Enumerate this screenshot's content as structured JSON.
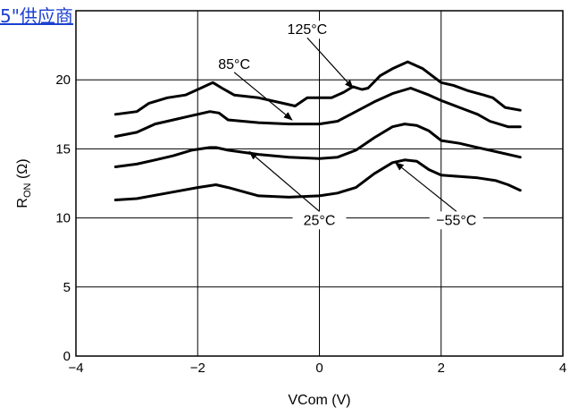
{
  "overlay_link": "5\"供应商",
  "chart_data": {
    "type": "line",
    "title": "",
    "xlabel": "VCom (V)",
    "ylabel_main": "R",
    "ylabel_sub": "ON",
    "ylabel_unit": " (Ω)",
    "xlim": [
      -4,
      4
    ],
    "ylim": [
      0,
      25
    ],
    "xticks": [
      -4,
      -2,
      0,
      2,
      4
    ],
    "yticks": [
      0,
      5,
      10,
      15,
      20,
      25
    ],
    "x_tick_labels": [
      "−4",
      "−2",
      "0",
      "2",
      "4"
    ],
    "grid": true,
    "series": [
      {
        "name": "125°C",
        "x": [
          -3.35,
          -3.0,
          -2.8,
          -2.5,
          -2.2,
          -1.95,
          -1.75,
          -1.6,
          -1.4,
          -1.0,
          -0.6,
          -0.4,
          -0.2,
          0.0,
          0.2,
          0.4,
          0.55,
          0.7,
          0.8,
          1.0,
          1.2,
          1.45,
          1.7,
          2.0,
          2.2,
          2.45,
          2.7,
          2.85,
          3.05,
          3.3
        ],
        "y": [
          17.5,
          17.7,
          18.3,
          18.7,
          18.9,
          19.4,
          19.8,
          19.4,
          18.9,
          18.7,
          18.3,
          18.1,
          18.7,
          18.7,
          18.7,
          19.1,
          19.5,
          19.3,
          19.4,
          20.3,
          20.8,
          21.3,
          20.8,
          19.8,
          19.6,
          19.2,
          18.9,
          18.7,
          18.0,
          17.8
        ]
      },
      {
        "name": "85°C",
        "x": [
          -3.35,
          -3.0,
          -2.7,
          -2.4,
          -2.1,
          -1.8,
          -1.65,
          -1.5,
          -1.0,
          -0.5,
          0.0,
          0.3,
          0.6,
          0.9,
          1.2,
          1.5,
          1.8,
          2.0,
          2.3,
          2.6,
          2.8,
          3.1,
          3.3
        ],
        "y": [
          15.9,
          16.2,
          16.8,
          17.1,
          17.4,
          17.7,
          17.6,
          17.1,
          16.9,
          16.8,
          16.8,
          17.0,
          17.7,
          18.4,
          19.0,
          19.4,
          18.9,
          18.5,
          18.0,
          17.5,
          17.0,
          16.6,
          16.6
        ]
      },
      {
        "name": "25°C",
        "x": [
          -3.35,
          -3.0,
          -2.7,
          -2.4,
          -2.1,
          -1.8,
          -1.7,
          -1.5,
          -1.0,
          -0.5,
          0.0,
          0.3,
          0.6,
          0.9,
          1.2,
          1.4,
          1.6,
          1.8,
          2.0,
          2.3,
          2.6,
          2.9,
          3.3
        ],
        "y": [
          13.7,
          13.9,
          14.2,
          14.5,
          14.9,
          15.1,
          15.1,
          14.9,
          14.6,
          14.4,
          14.3,
          14.4,
          14.9,
          15.8,
          16.6,
          16.8,
          16.7,
          16.3,
          15.6,
          15.4,
          15.1,
          14.8,
          14.4
        ]
      },
      {
        "name": "−55°C",
        "x": [
          -3.35,
          -3.0,
          -2.5,
          -2.0,
          -1.7,
          -1.5,
          -1.0,
          -0.5,
          0.0,
          0.3,
          0.6,
          0.9,
          1.2,
          1.4,
          1.6,
          1.8,
          2.0,
          2.3,
          2.6,
          2.9,
          3.1,
          3.3
        ],
        "y": [
          11.3,
          11.4,
          11.8,
          12.2,
          12.4,
          12.2,
          11.6,
          11.5,
          11.6,
          11.8,
          12.2,
          13.2,
          14.0,
          14.2,
          14.1,
          13.5,
          13.1,
          13.0,
          12.9,
          12.7,
          12.4,
          12.0
        ]
      }
    ],
    "annotations": [
      {
        "text": "125°C",
        "label_at": [
          -0.2,
          23.3
        ],
        "arrow_to": [
          0.55,
          19.4
        ]
      },
      {
        "text": "85°C",
        "label_at": [
          -1.4,
          20.8
        ],
        "arrow_to": [
          -0.45,
          17.1
        ]
      },
      {
        "text": "25°C",
        "label_at": [
          0.0,
          9.5
        ],
        "arrow_to": [
          -1.15,
          14.8
        ]
      },
      {
        "text": "−55°C",
        "label_at": [
          2.25,
          9.5
        ],
        "arrow_to": [
          1.25,
          14.0
        ]
      }
    ]
  }
}
